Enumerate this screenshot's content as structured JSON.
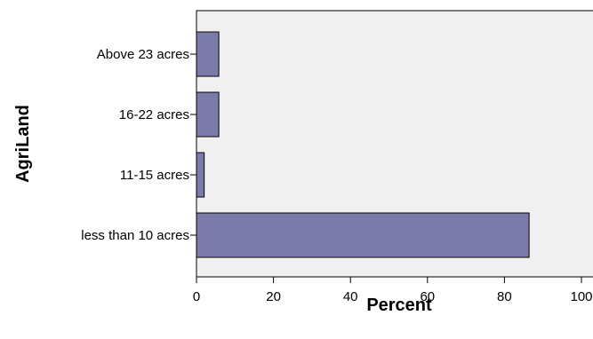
{
  "chart_data": {
    "type": "bar",
    "orientation": "horizontal",
    "ylabel": "AgriLand",
    "xlabel": "Percent",
    "categories": [
      "Above 23 acres",
      "16-22 acres",
      "11-15 acres",
      "less than 10 acres"
    ],
    "values": [
      5.8,
      5.8,
      2.0,
      86.4
    ],
    "xlim": [
      0,
      100
    ],
    "xticks": [
      "0",
      "20",
      "40",
      "60",
      "80",
      "100"
    ],
    "grid": false,
    "legend": "none",
    "colors": {
      "bar_fill": "#7b7baa",
      "bar_stroke": "#000000",
      "plot_background": "#f0f0f0",
      "axis": "#000000"
    }
  }
}
